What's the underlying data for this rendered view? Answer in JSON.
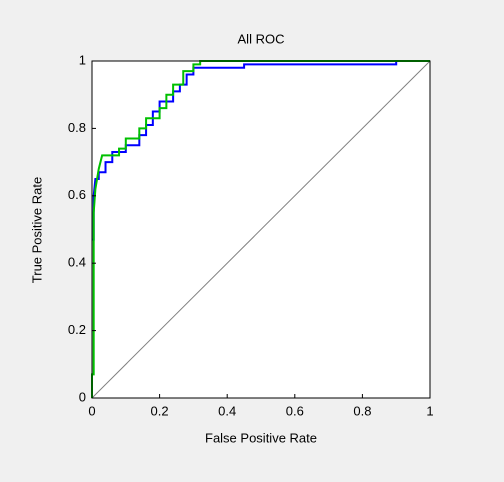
{
  "chart_data": {
    "type": "line",
    "title": "All ROC",
    "x_label": "False Positive Rate",
    "y_label": "True Positive Rate",
    "xlim": [
      0,
      1
    ],
    "ylim": [
      0,
      1
    ],
    "xticks": [
      0,
      0.2,
      0.4,
      0.6,
      0.8,
      1
    ],
    "yticks": [
      0,
      0.2,
      0.4,
      0.6,
      0.8,
      1
    ],
    "series": [
      {
        "color": "#808080",
        "x": [
          0,
          1
        ],
        "values": [
          0,
          1
        ]
      },
      {
        "color": "#0000ff",
        "x": [
          0,
          0.005,
          0.005,
          0.01,
          0.02,
          0.02,
          0.04,
          0.04,
          0.06,
          0.06,
          0.1,
          0.1,
          0.14,
          0.14,
          0.16,
          0.16,
          0.18,
          0.18,
          0.2,
          0.2,
          0.24,
          0.24,
          0.26,
          0.26,
          0.28,
          0.28,
          0.3,
          0.3,
          0.45,
          0.45,
          0.9,
          0.9,
          1
        ],
        "values": [
          0.47,
          0.47,
          0.6,
          0.65,
          0.65,
          0.67,
          0.67,
          0.7,
          0.7,
          0.73,
          0.73,
          0.75,
          0.75,
          0.78,
          0.78,
          0.81,
          0.81,
          0.85,
          0.85,
          0.88,
          0.88,
          0.91,
          0.91,
          0.93,
          0.93,
          0.96,
          0.96,
          0.98,
          0.98,
          0.99,
          0.99,
          1,
          1
        ]
      },
      {
        "color": "#00c000",
        "x": [
          0,
          0,
          0.005,
          0.005,
          0.01,
          0.02,
          0.03,
          0.08,
          0.08,
          0.1,
          0.1,
          0.14,
          0.14,
          0.16,
          0.16,
          0.2,
          0.2,
          0.22,
          0.22,
          0.24,
          0.24,
          0.27,
          0.27,
          0.3,
          0.3,
          0.32,
          0.32,
          1
        ],
        "values": [
          0,
          0.07,
          0.07,
          0.55,
          0.62,
          0.68,
          0.72,
          0.72,
          0.74,
          0.74,
          0.77,
          0.77,
          0.8,
          0.8,
          0.83,
          0.83,
          0.86,
          0.86,
          0.9,
          0.9,
          0.93,
          0.93,
          0.97,
          0.97,
          0.99,
          0.99,
          1,
          1
        ]
      }
    ]
  }
}
